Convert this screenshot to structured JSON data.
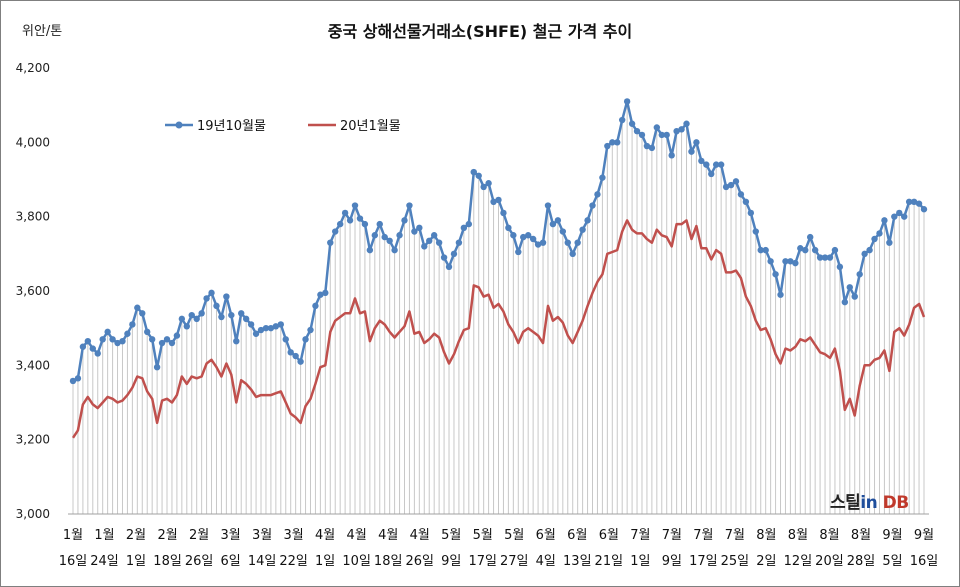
{
  "chart_data": {
    "type": "line",
    "title": "중국 상해선물거래소(SHFE) 철근 가격 추이",
    "unit_label": "위안/톤",
    "ylim": [
      3000,
      4200
    ],
    "yticks": [
      3000,
      3200,
      3400,
      3600,
      3800,
      4000,
      4200
    ],
    "ytick_labels": [
      "3,000",
      "3,200",
      "3,400",
      "3,600",
      "3,800",
      "4,000",
      "4,200"
    ],
    "grid": "vertical drop lines per data point",
    "legend_position": "top-left",
    "x_tick_labels": [
      {
        "month": "1월",
        "day": "16일"
      },
      {
        "month": "1월",
        "day": "24일"
      },
      {
        "month": "2월",
        "day": "1일"
      },
      {
        "month": "2월",
        "day": "18일"
      },
      {
        "month": "2월",
        "day": "26일"
      },
      {
        "month": "3월",
        "day": "6일"
      },
      {
        "month": "3월",
        "day": "14일"
      },
      {
        "month": "3월",
        "day": "22일"
      },
      {
        "month": "4월",
        "day": "1일"
      },
      {
        "month": "4월",
        "day": "10일"
      },
      {
        "month": "4월",
        "day": "18일"
      },
      {
        "month": "4월",
        "day": "26일"
      },
      {
        "month": "5월",
        "day": "9일"
      },
      {
        "month": "5월",
        "day": "17일"
      },
      {
        "month": "5월",
        "day": "27일"
      },
      {
        "month": "6월",
        "day": "4일"
      },
      {
        "month": "6월",
        "day": "13일"
      },
      {
        "month": "6월",
        "day": "21일"
      },
      {
        "month": "7월",
        "day": "1일"
      },
      {
        "month": "7월",
        "day": "9일"
      },
      {
        "month": "7월",
        "day": "17일"
      },
      {
        "month": "7월",
        "day": "25일"
      },
      {
        "month": "8월",
        "day": "2일"
      },
      {
        "month": "8월",
        "day": "12일"
      },
      {
        "month": "8월",
        "day": "20일"
      },
      {
        "month": "8월",
        "day": "28일"
      },
      {
        "month": "9월",
        "day": "5일"
      },
      {
        "month": "9월",
        "day": "16일"
      }
    ],
    "series": [
      {
        "name": "19년10월물",
        "color": "#4f81bd",
        "marker": "circle",
        "values": [
          3358,
          3365,
          3450,
          3465,
          3445,
          3432,
          3470,
          3490,
          3470,
          3460,
          3465,
          3485,
          3510,
          3555,
          3540,
          3490,
          3470,
          3395,
          3460,
          3470,
          3460,
          3480,
          3525,
          3505,
          3535,
          3525,
          3540,
          3580,
          3595,
          3560,
          3530,
          3585,
          3535,
          3465,
          3540,
          3525,
          3510,
          3485,
          3495,
          3500,
          3500,
          3505,
          3510,
          3470,
          3435,
          3425,
          3410,
          3470,
          3495,
          3560,
          3590,
          3595,
          3730,
          3760,
          3780,
          3810,
          3790,
          3830,
          3795,
          3780,
          3710,
          3750,
          3780,
          3745,
          3735,
          3710,
          3750,
          3790,
          3830,
          3760,
          3770,
          3720,
          3735,
          3750,
          3730,
          3690,
          3665,
          3700,
          3730,
          3770,
          3780,
          3920,
          3910,
          3880,
          3890,
          3840,
          3845,
          3810,
          3770,
          3750,
          3705,
          3745,
          3750,
          3740,
          3725,
          3730,
          3830,
          3780,
          3790,
          3760,
          3730,
          3700,
          3730,
          3765,
          3790,
          3830,
          3860,
          3905,
          3990,
          4000,
          4000,
          4060,
          4110,
          4050,
          4030,
          4020,
          3990,
          3985,
          4040,
          4020,
          4020,
          3965,
          4030,
          4035,
          4050,
          3975,
          4000,
          3950,
          3940,
          3915,
          3940,
          3940,
          3880,
          3885,
          3895,
          3860,
          3840,
          3810,
          3760,
          3710,
          3710,
          3680,
          3645,
          3590,
          3680,
          3680,
          3675,
          3715,
          3710,
          3745,
          3710,
          3690,
          3690,
          3690,
          3710,
          3665,
          3570,
          3610,
          3585,
          3645,
          3700,
          3710,
          3740,
          3755,
          3790,
          3730,
          3800,
          3810,
          3800,
          3840,
          3840,
          3835,
          3820
        ]
      },
      {
        "name": "20년1월물",
        "color": "#c0504d",
        "marker": "none",
        "values": [
          3205,
          3225,
          3295,
          3315,
          3295,
          3285,
          3300,
          3315,
          3310,
          3300,
          3305,
          3320,
          3340,
          3370,
          3365,
          3330,
          3310,
          3245,
          3305,
          3310,
          3300,
          3320,
          3370,
          3350,
          3370,
          3365,
          3370,
          3405,
          3415,
          3395,
          3370,
          3405,
          3375,
          3300,
          3360,
          3350,
          3335,
          3315,
          3320,
          3320,
          3320,
          3325,
          3330,
          3300,
          3270,
          3260,
          3245,
          3290,
          3310,
          3350,
          3395,
          3400,
          3490,
          3520,
          3530,
          3540,
          3540,
          3580,
          3540,
          3545,
          3465,
          3500,
          3520,
          3510,
          3490,
          3475,
          3490,
          3505,
          3545,
          3485,
          3490,
          3460,
          3470,
          3485,
          3475,
          3435,
          3405,
          3430,
          3465,
          3495,
          3500,
          3615,
          3610,
          3585,
          3590,
          3555,
          3565,
          3545,
          3510,
          3490,
          3460,
          3490,
          3500,
          3490,
          3480,
          3460,
          3560,
          3520,
          3530,
          3515,
          3480,
          3460,
          3490,
          3520,
          3560,
          3595,
          3625,
          3645,
          3700,
          3705,
          3710,
          3760,
          3790,
          3765,
          3755,
          3755,
          3740,
          3730,
          3765,
          3750,
          3745,
          3720,
          3780,
          3780,
          3790,
          3740,
          3775,
          3715,
          3715,
          3685,
          3710,
          3700,
          3650,
          3650,
          3655,
          3635,
          3585,
          3560,
          3520,
          3495,
          3500,
          3470,
          3430,
          3405,
          3445,
          3440,
          3450,
          3470,
          3465,
          3475,
          3455,
          3435,
          3430,
          3420,
          3445,
          3385,
          3280,
          3310,
          3265,
          3345,
          3400,
          3400,
          3415,
          3420,
          3440,
          3385,
          3490,
          3500,
          3480,
          3510,
          3555,
          3565,
          3530
        ]
      }
    ]
  },
  "watermark": {
    "part1": "스틸",
    "part2": "in",
    "part3": " DB"
  }
}
